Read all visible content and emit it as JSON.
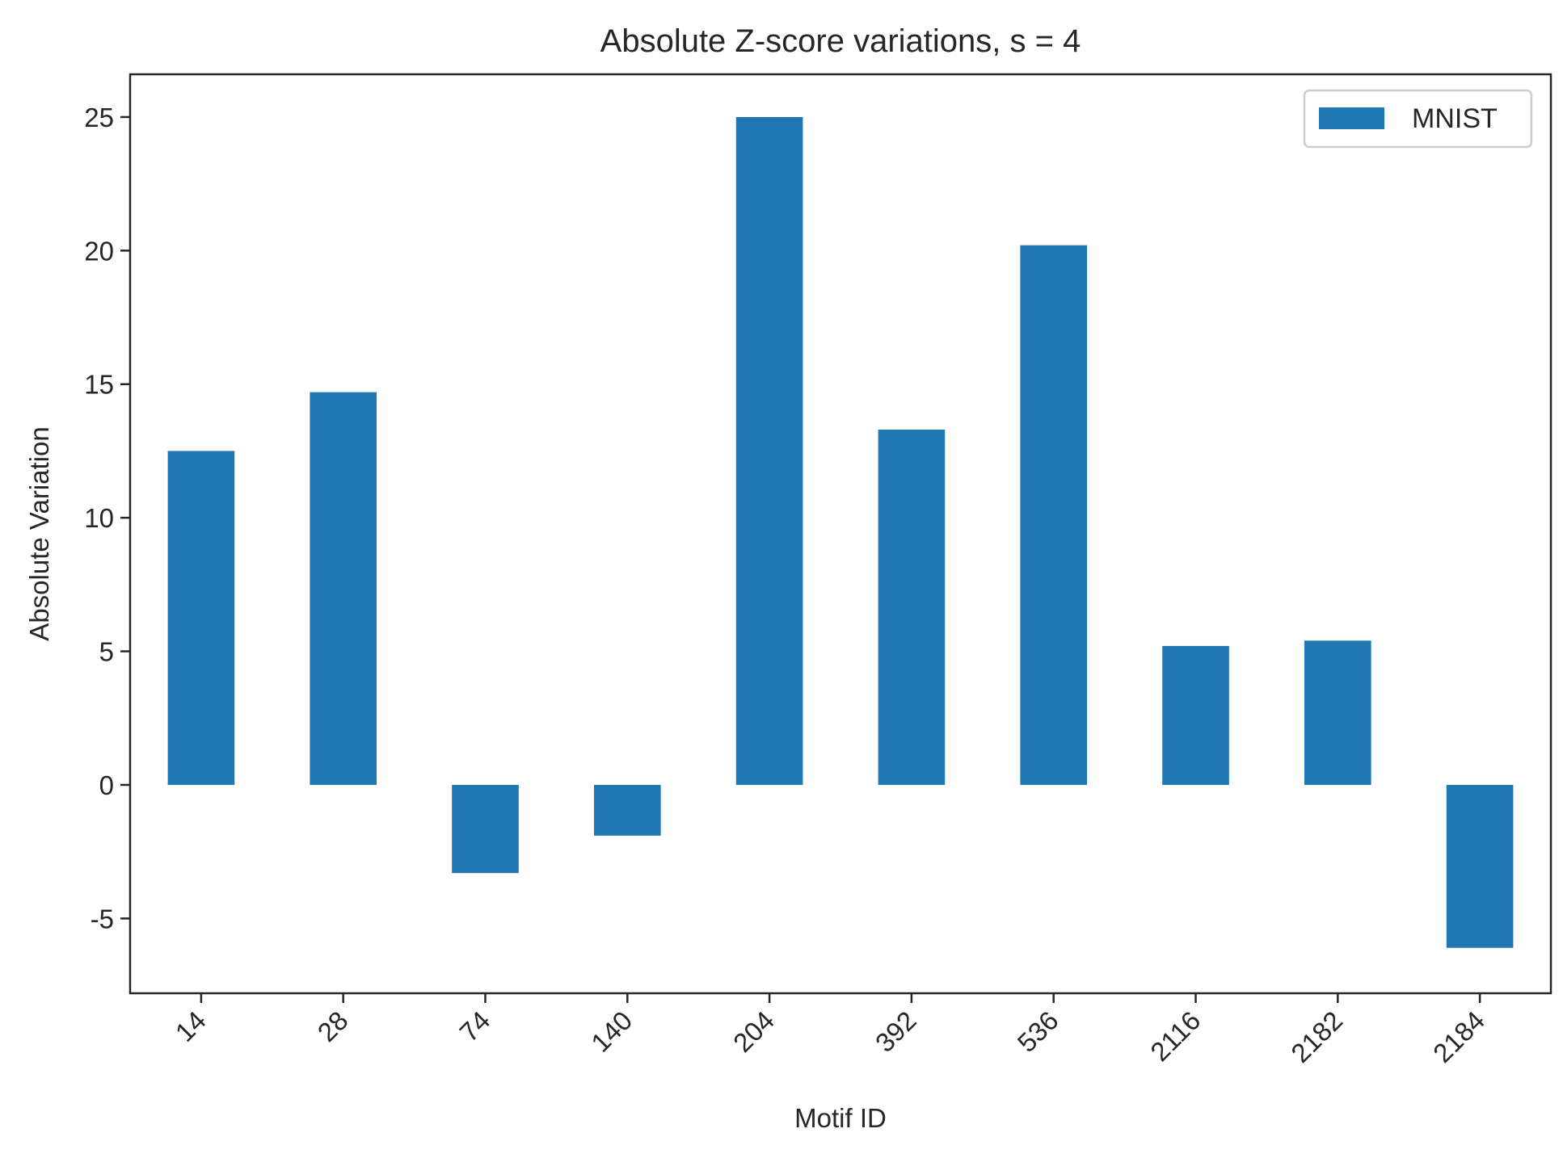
{
  "chart_data": {
    "type": "bar",
    "title": "Absolute Z-score variations, s = 4",
    "xlabel": "Motif ID",
    "ylabel": "Absolute Variation",
    "categories": [
      "14",
      "28",
      "74",
      "140",
      "204",
      "392",
      "536",
      "2116",
      "2182",
      "2184"
    ],
    "series": [
      {
        "name": "MNIST",
        "color": "#1f77b4",
        "values": [
          12.5,
          14.7,
          -3.3,
          -1.9,
          25.0,
          13.3,
          20.2,
          5.2,
          5.4,
          -6.1
        ]
      }
    ],
    "ylim": [
      -7.8,
      26.6
    ],
    "yticks": [
      -5,
      0,
      5,
      10,
      15,
      20,
      25
    ],
    "ytick_labels": [
      "-5",
      "0",
      "5",
      "10",
      "15",
      "20",
      "25"
    ],
    "grid": false,
    "legend_position": "top-right"
  }
}
